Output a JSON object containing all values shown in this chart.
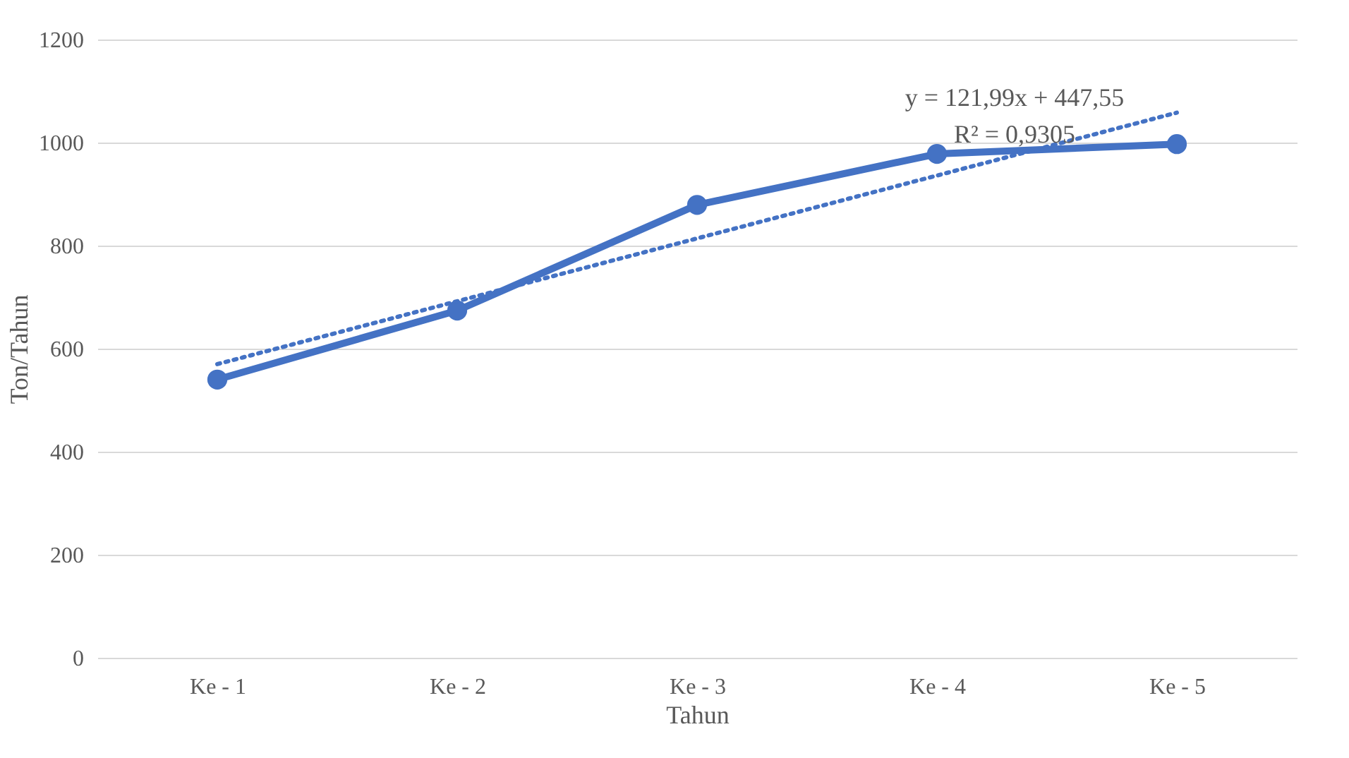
{
  "chart_data": {
    "type": "line",
    "xlabel": "Tahun",
    "ylabel": "Ton/Tahun",
    "categories": [
      "Ke - 1",
      "Ke - 2",
      "Ke - 3",
      "Ke - 4",
      "Ke - 5"
    ],
    "series": [
      {
        "color": "#4472c4",
        "values": [
          540,
          674,
          879,
          978,
          997
        ],
        "marker": "circle",
        "line_style": "solid"
      },
      {
        "type": "line",
        "color": "#4472c4",
        "values": [
          570,
          692,
          814,
          936,
          1058
        ],
        "marker": "none",
        "line_style": "dotted"
      }
    ],
    "annotations": [
      "y = 121,99x + 447,55",
      "R² = 0,9305"
    ],
    "ylim": [
      0,
      1200
    ],
    "yticks": [
      0,
      200,
      400,
      600,
      800,
      1000,
      1200
    ],
    "grid": "y"
  }
}
